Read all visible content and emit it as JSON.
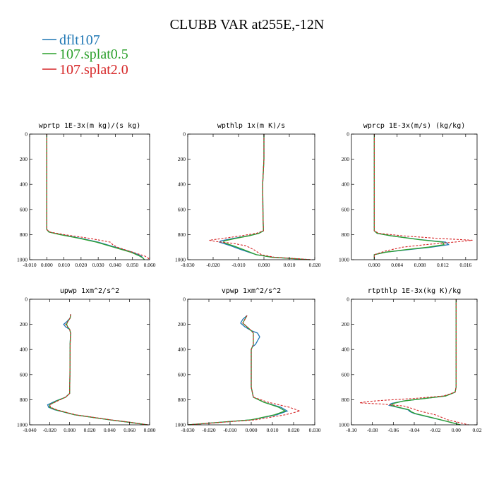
{
  "figure": {
    "title": "CLUBB VAR at255E,-12N"
  },
  "legend": [
    {
      "label": "dflt107",
      "color": "#1f77b4"
    },
    {
      "label": "107.splat0.5",
      "color": "#2ca02c"
    },
    {
      "label": "107.splat2.0",
      "color": "#d62728"
    }
  ],
  "chart_data": [
    {
      "type": "line",
      "title": "wprtp  1E-3x(m kg)/(s kg)",
      "xlim": [
        -0.01,
        0.06
      ],
      "ylim": [
        1000,
        0
      ],
      "xticks": [
        -0.01,
        0.0,
        0.01,
        0.02,
        0.03,
        0.04,
        0.05,
        0.06
      ],
      "xtick_labels": [
        "-0.010",
        "0.000",
        "0.010",
        "0.020",
        "0.030",
        "0.040",
        "0.050",
        "0.060"
      ],
      "yticks": [
        0,
        200,
        400,
        600,
        800,
        1000
      ],
      "ytick_labels": [
        "0",
        "200",
        "400",
        "600",
        "800",
        "1000"
      ],
      "series": [
        {
          "name": "dflt107",
          "y": [
            0,
            700,
            760,
            780,
            800,
            830,
            860,
            900,
            940,
            970,
            985,
            1000
          ],
          "x": [
            0,
            0,
            0,
            0.0015,
            0.008,
            0.02,
            0.03,
            0.04,
            0.05,
            0.055,
            0.056,
            0.057
          ]
        },
        {
          "name": "107.splat0.5",
          "y": [
            0,
            700,
            760,
            780,
            800,
            830,
            860,
            900,
            940,
            970,
            985,
            1000
          ],
          "x": [
            0,
            0,
            0,
            0.0012,
            0.0075,
            0.019,
            0.029,
            0.039,
            0.049,
            0.054,
            0.056,
            0.057
          ]
        },
        {
          "name": "107.splat2.0",
          "y": [
            0,
            700,
            760,
            780,
            800,
            830,
            860,
            880,
            900,
            940,
            970,
            985,
            1000
          ],
          "x": [
            0,
            0,
            0,
            0.002,
            0.01,
            0.025,
            0.037,
            0.0385,
            0.041,
            0.05,
            0.057,
            0.059,
            0.06
          ]
        }
      ]
    },
    {
      "type": "line",
      "title": "wpthlp  1x(m K)/s",
      "xlim": [
        -0.03,
        0.02
      ],
      "ylim": [
        1000,
        0
      ],
      "xticks": [
        -0.03,
        -0.02,
        -0.01,
        0.0,
        0.01,
        0.02
      ],
      "xtick_labels": [
        "-0.030",
        "-0.020",
        "-0.010",
        "0.000",
        "0.010",
        "0.020"
      ],
      "yticks": [
        0,
        200,
        400,
        600,
        800,
        1000
      ],
      "ytick_labels": [
        "0",
        "200",
        "400",
        "600",
        "800",
        "1000"
      ],
      "series": [
        {
          "name": "dflt107",
          "y": [
            0,
            100,
            200,
            400,
            600,
            700,
            770,
            790,
            810,
            830,
            850,
            860,
            870,
            890,
            920,
            960,
            980,
            1000
          ],
          "x": [
            0,
            0,
            0,
            -0.0005,
            -0.0004,
            -0.0003,
            -0.0002,
            -0.002,
            -0.006,
            -0.012,
            -0.017,
            -0.0175,
            -0.016,
            -0.013,
            -0.009,
            -0.003,
            0.003,
            0.018
          ]
        },
        {
          "name": "107.splat0.5",
          "y": [
            0,
            100,
            200,
            400,
            600,
            700,
            770,
            790,
            810,
            830,
            850,
            860,
            870,
            890,
            920,
            960,
            980,
            1000
          ],
          "x": [
            0,
            0,
            0,
            -0.0005,
            -0.0004,
            -0.0003,
            -0.0002,
            -0.002,
            -0.006,
            -0.011,
            -0.0155,
            -0.016,
            -0.015,
            -0.012,
            -0.008,
            -0.003,
            0.003,
            0.018
          ]
        },
        {
          "name": "107.splat2.0",
          "y": [
            0,
            100,
            200,
            400,
            600,
            700,
            770,
            790,
            810,
            830,
            845,
            855,
            870,
            890,
            920,
            960,
            980,
            1000
          ],
          "x": [
            0,
            0,
            0,
            -0.0005,
            -0.0004,
            -0.0003,
            -0.0002,
            -0.003,
            -0.009,
            -0.016,
            -0.0215,
            -0.019,
            -0.012,
            -0.007,
            -0.004,
            -0.001,
            0.004,
            0.019
          ]
        }
      ]
    },
    {
      "type": "line",
      "title": "wprcp  1E-3x(m/s) (kg/kg)",
      "xlim": [
        -0.004,
        0.018
      ],
      "ylim": [
        1000,
        0
      ],
      "xticks": [
        0.0,
        0.004,
        0.008,
        0.012,
        0.016
      ],
      "xtick_labels": [
        "0.000",
        "0.004",
        "0.008",
        "0.012",
        "0.016"
      ],
      "yticks": [
        0,
        200,
        400,
        600,
        800,
        1000
      ],
      "ytick_labels": [
        "0",
        "200",
        "400",
        "600",
        "800",
        "1000"
      ],
      "series": [
        {
          "name": "dflt107",
          "y": [
            0,
            700,
            770,
            790,
            810,
            840,
            860,
            880,
            900,
            920,
            940,
            960,
            1000
          ],
          "x": [
            0,
            0,
            0,
            0.0005,
            0.003,
            0.008,
            0.0125,
            0.013,
            0.01,
            0.006,
            0.002,
            0,
            0
          ]
        },
        {
          "name": "107.splat0.5",
          "y": [
            0,
            700,
            770,
            790,
            810,
            840,
            860,
            880,
            900,
            920,
            940,
            960,
            1000
          ],
          "x": [
            0,
            0,
            0,
            0.0005,
            0.003,
            0.0078,
            0.012,
            0.0122,
            0.0095,
            0.0055,
            0.002,
            0,
            0
          ]
        },
        {
          "name": "107.splat2.0",
          "y": [
            0,
            700,
            770,
            790,
            810,
            830,
            845,
            860,
            880,
            900,
            930,
            960,
            1000
          ],
          "x": [
            0,
            0,
            0,
            0.0008,
            0.005,
            0.011,
            0.0172,
            0.014,
            0.009,
            0.005,
            0.002,
            0,
            0
          ]
        }
      ]
    },
    {
      "type": "line",
      "title": "upwp  1xm^2/s^2",
      "xlim": [
        -0.04,
        0.08
      ],
      "ylim": [
        1000,
        0
      ],
      "xticks": [
        -0.04,
        -0.02,
        0.0,
        0.02,
        0.04,
        0.06,
        0.08
      ],
      "xtick_labels": [
        "-0.040",
        "-0.020",
        "0.000",
        "0.020",
        "0.040",
        "0.060",
        "0.080"
      ],
      "yticks": [
        0,
        200,
        400,
        600,
        800,
        1000
      ],
      "ytick_labels": [
        "0",
        "200",
        "400",
        "600",
        "800",
        "1000"
      ],
      "series": [
        {
          "name": "dflt107",
          "y": [
            120,
            150,
            180,
            200,
            220,
            240,
            270,
            350,
            600,
            750,
            780,
            810,
            840,
            860,
            880,
            920,
            960,
            980,
            1000
          ],
          "x": [
            0.001,
            0.0005,
            -0.003,
            -0.006,
            -0.004,
            0,
            0.001,
            0.0005,
            0.0003,
            0,
            -0.004,
            -0.014,
            -0.022,
            -0.021,
            -0.015,
            0.005,
            0.04,
            0.06,
            0.078
          ]
        },
        {
          "name": "107.splat0.5",
          "y": [
            120,
            150,
            180,
            200,
            220,
            240,
            270,
            350,
            600,
            750,
            780,
            810,
            840,
            860,
            880,
            920,
            960,
            980,
            1000
          ],
          "x": [
            0.001,
            0.0005,
            -0.002,
            -0.003,
            -0.002,
            0,
            0.001,
            0.0005,
            0.0003,
            0,
            -0.004,
            -0.013,
            -0.02,
            -0.02,
            -0.014,
            0.005,
            0.04,
            0.06,
            0.078
          ]
        },
        {
          "name": "107.splat2.0",
          "y": [
            120,
            150,
            180,
            200,
            220,
            240,
            270,
            350,
            600,
            750,
            780,
            810,
            840,
            860,
            880,
            920,
            960,
            980,
            1000
          ],
          "x": [
            0.001,
            0.0005,
            -0.002,
            -0.004,
            -0.002,
            0,
            0.001,
            0.0005,
            0.0003,
            0,
            -0.004,
            -0.012,
            -0.02,
            -0.019,
            -0.013,
            0.006,
            0.041,
            0.061,
            0.078
          ]
        }
      ]
    },
    {
      "type": "line",
      "title": "vpwp  1xm^2/s^2",
      "xlim": [
        -0.03,
        0.03
      ],
      "ylim": [
        1000,
        0
      ],
      "xticks": [
        -0.03,
        -0.02,
        -0.01,
        0.0,
        0.01,
        0.02,
        0.03
      ],
      "xtick_labels": [
        "-0.030",
        "-0.020",
        "-0.010",
        "0.000",
        "0.010",
        "0.020",
        "0.030"
      ],
      "yticks": [
        0,
        200,
        400,
        600,
        800,
        1000
      ],
      "ytick_labels": [
        "0",
        "200",
        "400",
        "600",
        "800",
        "1000"
      ],
      "series": [
        {
          "name": "dflt107",
          "y": [
            130,
            160,
            190,
            220,
            250,
            270,
            300,
            330,
            360,
            380,
            400,
            500,
            700,
            780,
            820,
            860,
            890,
            920,
            960,
            1000
          ],
          "x": [
            -0.002,
            -0.004,
            -0.005,
            -0.003,
            0,
            0.003,
            0.004,
            0.003,
            0.002,
            0.0005,
            0,
            0,
            0,
            0.001,
            0.006,
            0.014,
            0.017,
            0.012,
            0,
            -0.03
          ]
        },
        {
          "name": "107.splat0.5",
          "y": [
            130,
            160,
            190,
            220,
            250,
            270,
            300,
            330,
            360,
            380,
            400,
            500,
            700,
            780,
            820,
            860,
            890,
            920,
            960,
            1000
          ],
          "x": [
            -0.002,
            -0.003,
            -0.004,
            -0.002,
            0,
            0.001,
            0.001,
            0.001,
            0.001,
            0.0005,
            0,
            0,
            0,
            0.001,
            0.006,
            0.013,
            0.016,
            0.011,
            0,
            -0.03
          ]
        },
        {
          "name": "107.splat2.0",
          "y": [
            130,
            160,
            190,
            220,
            250,
            270,
            300,
            330,
            360,
            380,
            400,
            500,
            700,
            780,
            820,
            860,
            890,
            920,
            960,
            1000
          ],
          "x": [
            -0.002,
            -0.003,
            -0.004,
            -0.002,
            0,
            0.001,
            0.001,
            0.001,
            0.001,
            0.0005,
            0,
            0,
            0,
            0.001,
            0.008,
            0.018,
            0.023,
            0.016,
            0.002,
            -0.03
          ]
        }
      ]
    },
    {
      "type": "line",
      "title": "rtpthlp  1E-3x(kg K)/kg",
      "xlim": [
        -0.1,
        0.02
      ],
      "ylim": [
        1000,
        0
      ],
      "xticks": [
        -0.1,
        -0.08,
        -0.06,
        -0.04,
        -0.02,
        0.0,
        0.02
      ],
      "xtick_labels": [
        "-0.10",
        "-0.08",
        "-0.06",
        "-0.04",
        "-0.02",
        "0.00",
        "0.02"
      ],
      "yticks": [
        0,
        200,
        400,
        600,
        800,
        1000
      ],
      "ytick_labels": [
        "0",
        "200",
        "400",
        "600",
        "800",
        "1000"
      ],
      "series": [
        {
          "name": "dflt107",
          "y": [
            0,
            700,
            740,
            770,
            790,
            810,
            830,
            845,
            860,
            880,
            895,
            910,
            940,
            970,
            1000
          ],
          "x": [
            0,
            0,
            -0.001,
            -0.01,
            -0.03,
            -0.05,
            -0.062,
            -0.064,
            -0.056,
            -0.046,
            -0.044,
            -0.04,
            -0.025,
            -0.01,
            0.004
          ]
        },
        {
          "name": "107.splat0.5",
          "y": [
            0,
            700,
            740,
            770,
            790,
            810,
            830,
            845,
            860,
            880,
            895,
            910,
            940,
            970,
            1000
          ],
          "x": [
            0,
            0,
            -0.001,
            -0.01,
            -0.03,
            -0.05,
            -0.06,
            -0.062,
            -0.055,
            -0.045,
            -0.043,
            -0.039,
            -0.024,
            -0.01,
            0.004
          ]
        },
        {
          "name": "107.splat2.0",
          "y": [
            0,
            700,
            740,
            770,
            790,
            805,
            815,
            825,
            835,
            850,
            870,
            890,
            920,
            960,
            1000
          ],
          "x": [
            0,
            0,
            -0.001,
            -0.012,
            -0.04,
            -0.07,
            -0.085,
            -0.092,
            -0.07,
            -0.05,
            -0.042,
            -0.035,
            -0.02,
            -0.008,
            0.012
          ]
        }
      ]
    }
  ]
}
